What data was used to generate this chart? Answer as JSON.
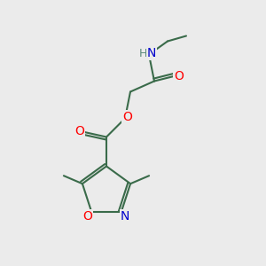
{
  "bg_color": "#ebebeb",
  "bond_color": "#3a6b4a",
  "bond_width": 1.5,
  "atom_colors": {
    "O": "#ff0000",
    "N": "#0000cc",
    "H": "#5a8a7a",
    "C": "#3a6b4a"
  },
  "font_size_atom": 10,
  "font_size_methyl": 9
}
